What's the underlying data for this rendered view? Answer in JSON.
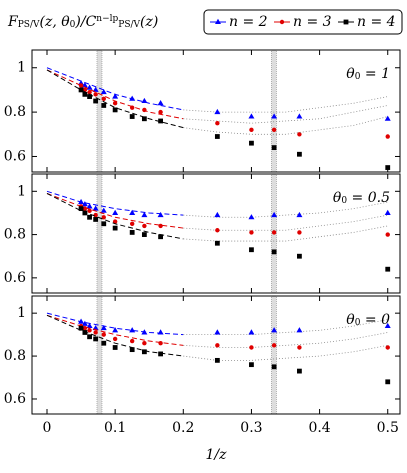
{
  "chart_data": [
    {
      "type": "scatter",
      "title": [
        "F",
        "PS/V",
        "(z, θ",
        "0",
        ")/C",
        "n−lp",
        "PS/V",
        "(z)"
      ],
      "annotation": [
        "θ",
        "0",
        " = 1"
      ],
      "x": [
        0.05,
        0.0556,
        0.0625,
        0.0714,
        0.0833,
        0.1,
        0.125,
        0.1429,
        0.1667,
        0.25,
        0.3,
        0.3333,
        0.3704,
        0.5
      ],
      "fit_x": [
        0,
        0.05,
        0.1,
        0.15,
        0.2,
        0.25,
        0.3,
        0.35,
        0.4,
        0.45,
        0.5
      ],
      "bands": [
        0.077,
        0.333
      ],
      "series": [
        {
          "name": "n = 2",
          "color": "#0000ff",
          "marker": "triangle",
          "values": [
            0.93,
            0.92,
            0.91,
            0.9,
            0.89,
            0.87,
            0.86,
            0.85,
            0.84,
            0.8,
            0.78,
            0.78,
            0.78,
            0.77
          ],
          "fit": [
            1.0,
            0.94,
            0.88,
            0.84,
            0.81,
            0.8,
            0.8,
            0.8,
            0.82,
            0.84,
            0.87
          ]
        },
        {
          "name": "n = 3",
          "color": "#e00000",
          "marker": "circle",
          "values": [
            0.92,
            0.9,
            0.89,
            0.88,
            0.86,
            0.84,
            0.82,
            0.81,
            0.8,
            0.75,
            0.72,
            0.72,
            0.7,
            0.69
          ],
          "fit": [
            0.99,
            0.92,
            0.85,
            0.8,
            0.77,
            0.76,
            0.75,
            0.76,
            0.77,
            0.8,
            0.83
          ]
        },
        {
          "name": "n = 4",
          "color": "#000000",
          "marker": "square",
          "values": [
            0.9,
            0.88,
            0.87,
            0.85,
            0.83,
            0.81,
            0.78,
            0.77,
            0.76,
            0.69,
            0.66,
            0.64,
            0.61,
            0.55
          ],
          "fit": [
            0.99,
            0.9,
            0.82,
            0.77,
            0.73,
            0.71,
            0.7,
            0.7,
            0.72,
            0.74,
            0.78
          ]
        }
      ],
      "xlim": [
        -0.022,
        0.518
      ],
      "ylim": [
        0.53,
        1.08
      ],
      "yticks": [
        0.6,
        0.8,
        1
      ]
    },
    {
      "type": "scatter",
      "annotation": [
        "θ",
        "0",
        " = 0.5"
      ],
      "x": [
        0.05,
        0.0556,
        0.0625,
        0.0714,
        0.0833,
        0.1,
        0.125,
        0.1429,
        0.1667,
        0.25,
        0.3,
        0.3333,
        0.3704,
        0.5
      ],
      "fit_x": [
        0,
        0.05,
        0.1,
        0.15,
        0.2,
        0.25,
        0.3,
        0.35,
        0.4,
        0.45,
        0.5
      ],
      "bands": [
        0.077,
        0.333
      ],
      "series": [
        {
          "name": "n = 2",
          "color": "#0000ff",
          "marker": "triangle",
          "values": [
            0.95,
            0.94,
            0.93,
            0.92,
            0.91,
            0.9,
            0.9,
            0.89,
            0.89,
            0.89,
            0.88,
            0.89,
            0.89,
            0.9
          ],
          "fit": [
            1.0,
            0.95,
            0.92,
            0.9,
            0.89,
            0.88,
            0.88,
            0.89,
            0.9,
            0.92,
            0.95
          ]
        },
        {
          "name": "n = 3",
          "color": "#e00000",
          "marker": "circle",
          "values": [
            0.93,
            0.92,
            0.91,
            0.89,
            0.88,
            0.86,
            0.85,
            0.84,
            0.84,
            0.82,
            0.81,
            0.81,
            0.81,
            0.8
          ],
          "fit": [
            0.99,
            0.93,
            0.88,
            0.85,
            0.83,
            0.82,
            0.82,
            0.82,
            0.84,
            0.86,
            0.89
          ]
        },
        {
          "name": "n = 4",
          "color": "#000000",
          "marker": "square",
          "values": [
            0.92,
            0.9,
            0.88,
            0.87,
            0.85,
            0.83,
            0.81,
            0.8,
            0.79,
            0.76,
            0.73,
            0.72,
            0.7,
            0.64
          ],
          "fit": [
            0.99,
            0.91,
            0.85,
            0.81,
            0.78,
            0.77,
            0.77,
            0.77,
            0.79,
            0.81,
            0.84
          ]
        }
      ],
      "xlim": [
        -0.022,
        0.518
      ],
      "ylim": [
        0.53,
        1.08
      ],
      "yticks": [
        0.6,
        0.8,
        1
      ]
    },
    {
      "type": "scatter",
      "annotation": [
        "θ",
        "0",
        " = 0"
      ],
      "xlabel": "1/z",
      "x": [
        0.05,
        0.0556,
        0.0625,
        0.0714,
        0.0833,
        0.1,
        0.125,
        0.1429,
        0.1667,
        0.25,
        0.3,
        0.3333,
        0.3704,
        0.5
      ],
      "fit_x": [
        0,
        0.05,
        0.1,
        0.15,
        0.2,
        0.25,
        0.3,
        0.35,
        0.4,
        0.45,
        0.5
      ],
      "bands": [
        0.077,
        0.333
      ],
      "series": [
        {
          "name": "n = 2",
          "color": "#0000ff",
          "marker": "triangle",
          "values": [
            0.96,
            0.95,
            0.94,
            0.93,
            0.93,
            0.92,
            0.92,
            0.91,
            0.91,
            0.91,
            0.91,
            0.92,
            0.92,
            0.94
          ],
          "fit": [
            1.0,
            0.96,
            0.93,
            0.91,
            0.9,
            0.9,
            0.9,
            0.91,
            0.92,
            0.94,
            0.97
          ]
        },
        {
          "name": "n = 3",
          "color": "#e00000",
          "marker": "circle",
          "values": [
            0.94,
            0.93,
            0.92,
            0.91,
            0.9,
            0.88,
            0.87,
            0.86,
            0.86,
            0.85,
            0.84,
            0.85,
            0.84,
            0.84
          ],
          "fit": [
            0.99,
            0.94,
            0.9,
            0.87,
            0.85,
            0.84,
            0.84,
            0.85,
            0.86,
            0.88,
            0.91
          ]
        },
        {
          "name": "n = 4",
          "color": "#000000",
          "marker": "square",
          "values": [
            0.93,
            0.91,
            0.89,
            0.88,
            0.86,
            0.84,
            0.83,
            0.82,
            0.81,
            0.78,
            0.76,
            0.75,
            0.73,
            0.68
          ],
          "fit": [
            0.99,
            0.92,
            0.86,
            0.82,
            0.8,
            0.78,
            0.78,
            0.79,
            0.8,
            0.82,
            0.85
          ]
        }
      ],
      "xlim": [
        -0.022,
        0.518
      ],
      "ylim": [
        0.53,
        1.08
      ],
      "yticks": [
        0.6,
        0.8,
        1
      ],
      "xticks": [
        0,
        0.1,
        0.2,
        0.3,
        0.4,
        0.5
      ]
    }
  ]
}
